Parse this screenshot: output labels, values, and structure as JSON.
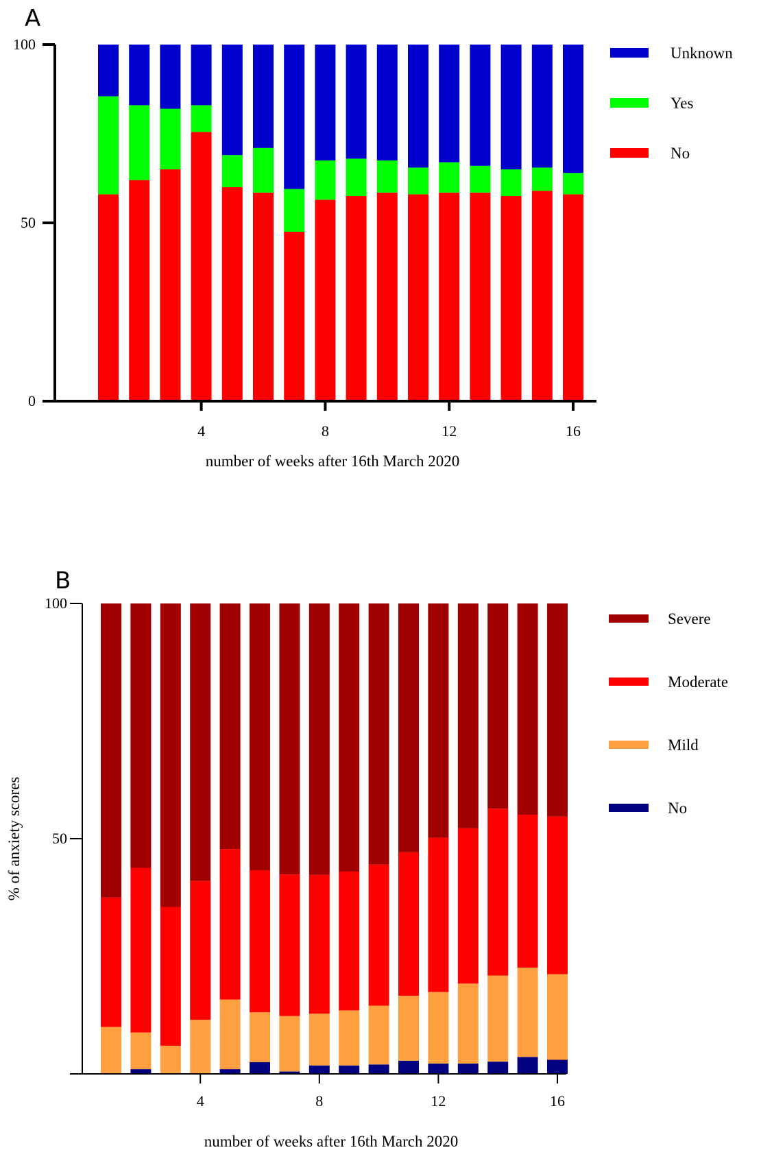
{
  "chart_data": [
    {
      "panel": "A",
      "type": "bar",
      "stacked": true,
      "x": [
        1,
        2,
        3,
        4,
        5,
        6,
        7,
        8,
        9,
        10,
        11,
        12,
        13,
        14,
        15,
        16
      ],
      "series": [
        {
          "name": "No",
          "color": "#ff0000",
          "values": [
            58,
            62,
            65,
            75.5,
            60,
            58.5,
            47.5,
            56.5,
            57.5,
            58.5,
            58,
            58.5,
            58.5,
            57.5,
            59,
            58
          ]
        },
        {
          "name": "Yes",
          "color": "#00ff00",
          "values": [
            27.5,
            21,
            17,
            7.5,
            9,
            12.5,
            12,
            11,
            10.5,
            9,
            7.5,
            8.5,
            7.5,
            7.5,
            6.5,
            6
          ]
        },
        {
          "name": "Unknown",
          "color": "#0000cd",
          "values": [
            14.5,
            17,
            18,
            17,
            31,
            29,
            40.5,
            32.5,
            32,
            32.5,
            34.5,
            33,
            34,
            35,
            34.5,
            36
          ]
        }
      ],
      "yticks": [
        "0",
        "50",
        "100"
      ],
      "xticks": [
        "4",
        "8",
        "12",
        "16"
      ],
      "xlabel": "number of  weeks after 16th  March 2020",
      "ylabel": "",
      "ylim": [
        0,
        100
      ],
      "legend_position": "right"
    },
    {
      "panel": "B",
      "type": "bar",
      "stacked": true,
      "x": [
        1,
        2,
        3,
        4,
        5,
        6,
        7,
        8,
        9,
        10,
        11,
        12,
        13,
        14,
        15,
        16
      ],
      "series": [
        {
          "name": "No",
          "color": "#000080",
          "values": [
            0,
            1,
            0,
            0,
            1,
            2.5,
            0.5,
            1.8,
            1.8,
            2,
            2.8,
            2.2,
            2.2,
            2.6,
            3.6,
            3
          ]
        },
        {
          "name": "Mild",
          "color": "#ffa040",
          "values": [
            10,
            7.8,
            6,
            11.5,
            14.8,
            10.6,
            11.8,
            11,
            11.7,
            12.5,
            13.8,
            15.2,
            17,
            18.3,
            19,
            18.2
          ]
        },
        {
          "name": "Moderate",
          "color": "#ff0000",
          "values": [
            27.5,
            35,
            29.5,
            29.5,
            32,
            30.2,
            30.1,
            29.5,
            29.5,
            30,
            30.5,
            32.8,
            33,
            35.5,
            32.5,
            33.5
          ]
        },
        {
          "name": "Severe",
          "color": "#a00000",
          "values": [
            62.5,
            56.2,
            64.5,
            59,
            52.2,
            56.7,
            57.6,
            57.7,
            57,
            55.5,
            52.9,
            49.8,
            47.8,
            43.6,
            44.9,
            45.3
          ]
        }
      ],
      "yticks": [
        "50",
        "100"
      ],
      "xticks": [
        "4",
        "8",
        "12",
        "16"
      ],
      "xlabel": "number of  weeks after 16th  March 2020",
      "ylabel": "% of anxiety scores",
      "ylim": [
        0,
        100
      ],
      "legend_position": "right"
    }
  ]
}
